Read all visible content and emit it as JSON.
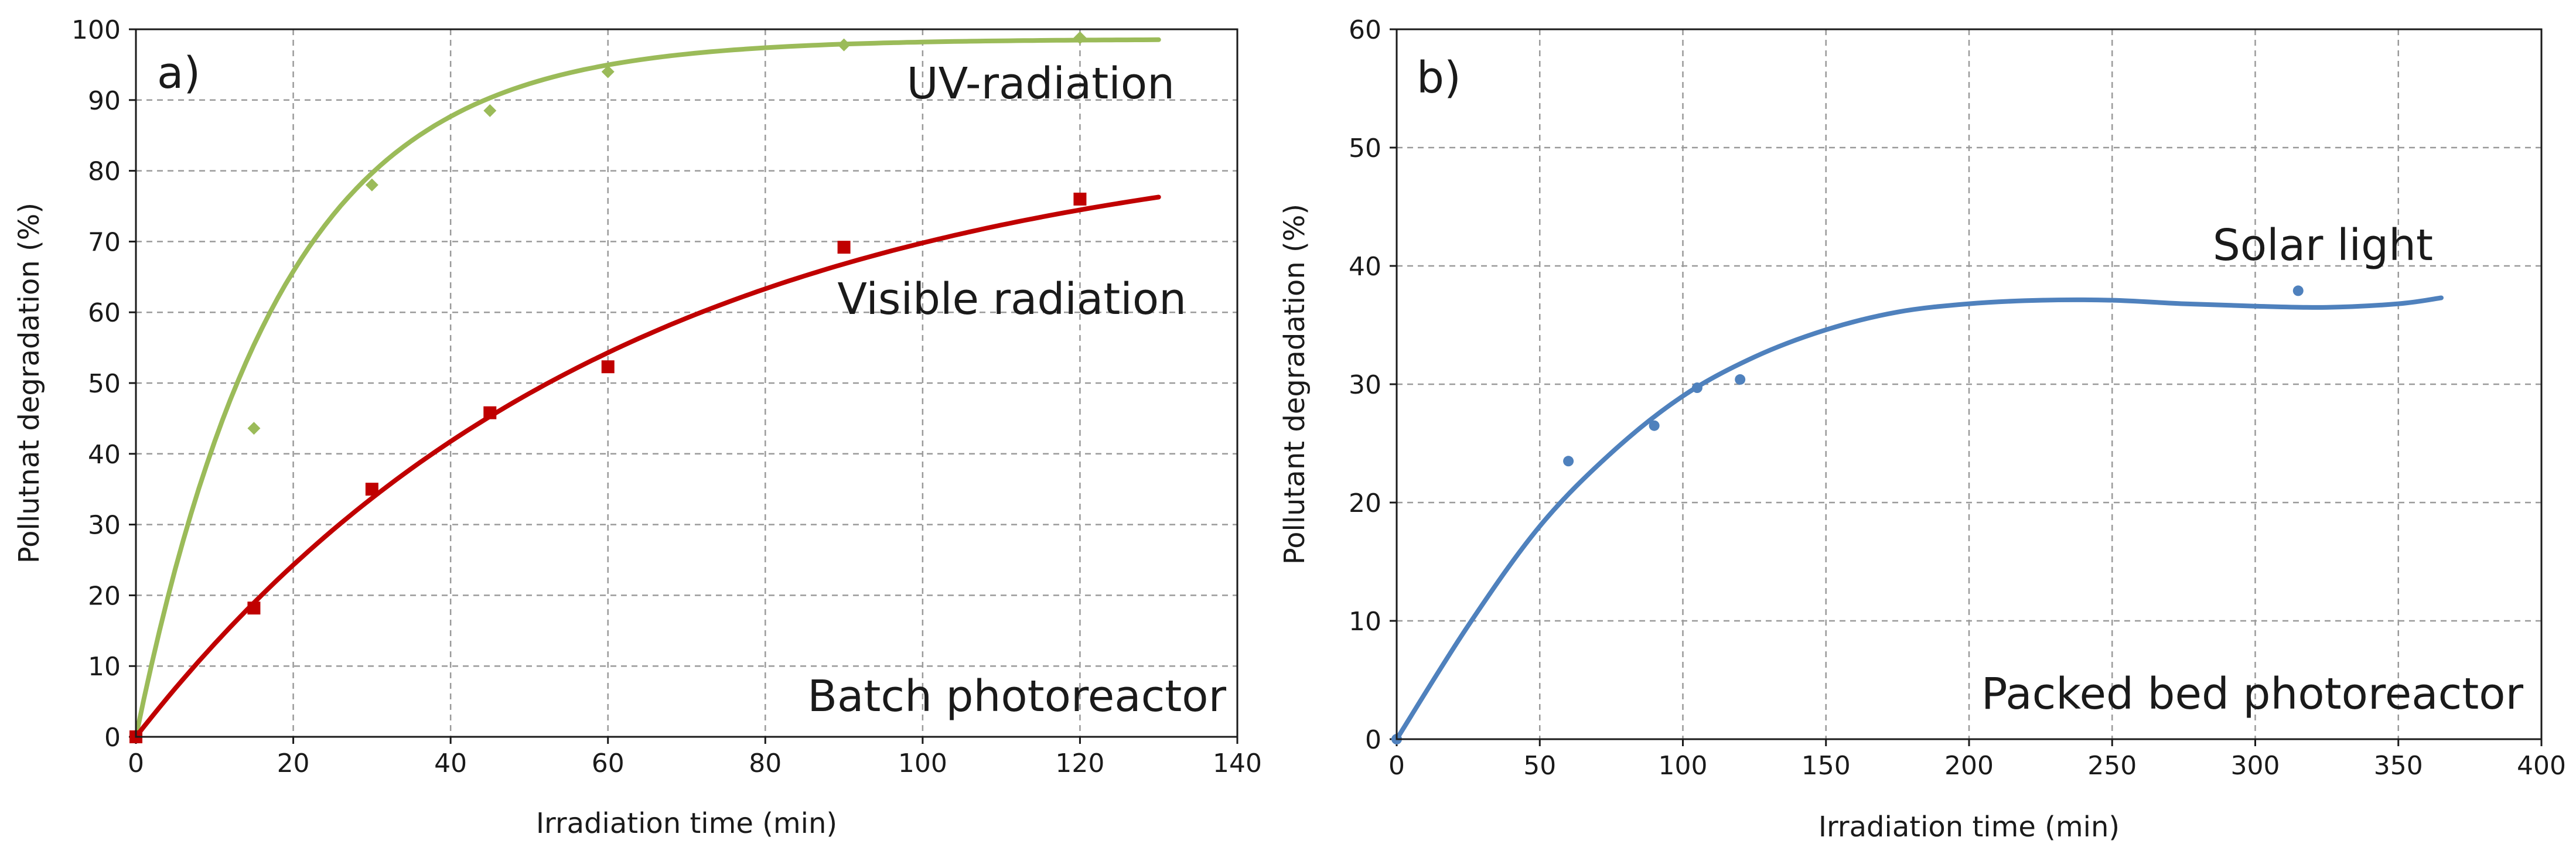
{
  "chart_data": [
    {
      "type": "line",
      "panel_label": "a)",
      "title": "",
      "xlabel": "Irradiation time (min)",
      "ylabel": "Pollutnat degradation (%)",
      "xlim": [
        0,
        140
      ],
      "ylim": [
        0,
        100
      ],
      "x_ticks": [
        0,
        20,
        40,
        60,
        80,
        100,
        120,
        140
      ],
      "y_ticks": [
        0,
        10,
        20,
        30,
        40,
        50,
        60,
        70,
        80,
        90,
        100
      ],
      "grid": true,
      "legend": "none",
      "annotations": [
        {
          "id": "uv",
          "text": "UV-radiation"
        },
        {
          "id": "vis",
          "text": "Visible radiation"
        },
        {
          "id": "reactor",
          "text": "Batch photoreactor"
        }
      ],
      "series": [
        {
          "name": "UV-radiation",
          "color": "#9bbb59",
          "marker": "diamond",
          "points": [
            {
              "x": 0,
              "y": 0
            },
            {
              "x": 15,
              "y": 43.6
            },
            {
              "x": 30,
              "y": 78
            },
            {
              "x": 45,
              "y": 88.5
            },
            {
              "x": 60,
              "y": 94
            },
            {
              "x": 90,
              "y": 97.8
            },
            {
              "x": 120,
              "y": 98.8
            }
          ],
          "fit": {
            "model": "exponential",
            "ymax": 98.6,
            "k": 0.055,
            "x_end": 130
          }
        },
        {
          "name": "Visible radiation",
          "color": "#c00000",
          "marker": "square",
          "points": [
            {
              "x": 0,
              "y": 0
            },
            {
              "x": 15,
              "y": 18.2
            },
            {
              "x": 30,
              "y": 35
            },
            {
              "x": 45,
              "y": 45.8
            },
            {
              "x": 60,
              "y": 52.3
            },
            {
              "x": 90,
              "y": 69.2
            },
            {
              "x": 120,
              "y": 76
            }
          ],
          "fit": {
            "model": "exponential",
            "ymax": 86.4,
            "k": 0.0165,
            "x_end": 130
          }
        }
      ]
    },
    {
      "type": "line",
      "panel_label": "b)",
      "title": "",
      "xlabel": "Irradiation time (min)",
      "ylabel": "Pollutant degradation (%)",
      "xlim": [
        0,
        400
      ],
      "ylim": [
        0,
        60
      ],
      "x_ticks": [
        0,
        50,
        100,
        150,
        200,
        250,
        300,
        350,
        400
      ],
      "y_ticks": [
        0,
        10,
        20,
        30,
        40,
        50,
        60
      ],
      "grid": true,
      "legend": "none",
      "annotations": [
        {
          "id": "solar",
          "text": "Solar light"
        },
        {
          "id": "reactor",
          "text": "Packed bed photoreactor"
        }
      ],
      "series": [
        {
          "name": "Solar light",
          "color": "#4f81bd",
          "marker": "circle",
          "points": [
            {
              "x": 0,
              "y": 0
            },
            {
              "x": 60,
              "y": 23.5
            },
            {
              "x": 90,
              "y": 26.5
            },
            {
              "x": 105,
              "y": 29.7
            },
            {
              "x": 120,
              "y": 30.4
            },
            {
              "x": 315,
              "y": 37.9
            }
          ],
          "fit": {
            "model": "polynomial",
            "curve": [
              {
                "x": 0,
                "y": 0
              },
              {
                "x": 25,
                "y": 9.6
              },
              {
                "x": 50,
                "y": 18
              },
              {
                "x": 75,
                "y": 24.2
              },
              {
                "x": 100,
                "y": 29
              },
              {
                "x": 125,
                "y": 32.3
              },
              {
                "x": 150,
                "y": 34.6
              },
              {
                "x": 175,
                "y": 36.1
              },
              {
                "x": 200,
                "y": 36.8
              },
              {
                "x": 225,
                "y": 37.1
              },
              {
                "x": 250,
                "y": 37.1
              },
              {
                "x": 275,
                "y": 36.8
              },
              {
                "x": 300,
                "y": 36.6
              },
              {
                "x": 325,
                "y": 36.5
              },
              {
                "x": 350,
                "y": 36.8
              },
              {
                "x": 365,
                "y": 37.3
              }
            ]
          }
        }
      ]
    }
  ]
}
